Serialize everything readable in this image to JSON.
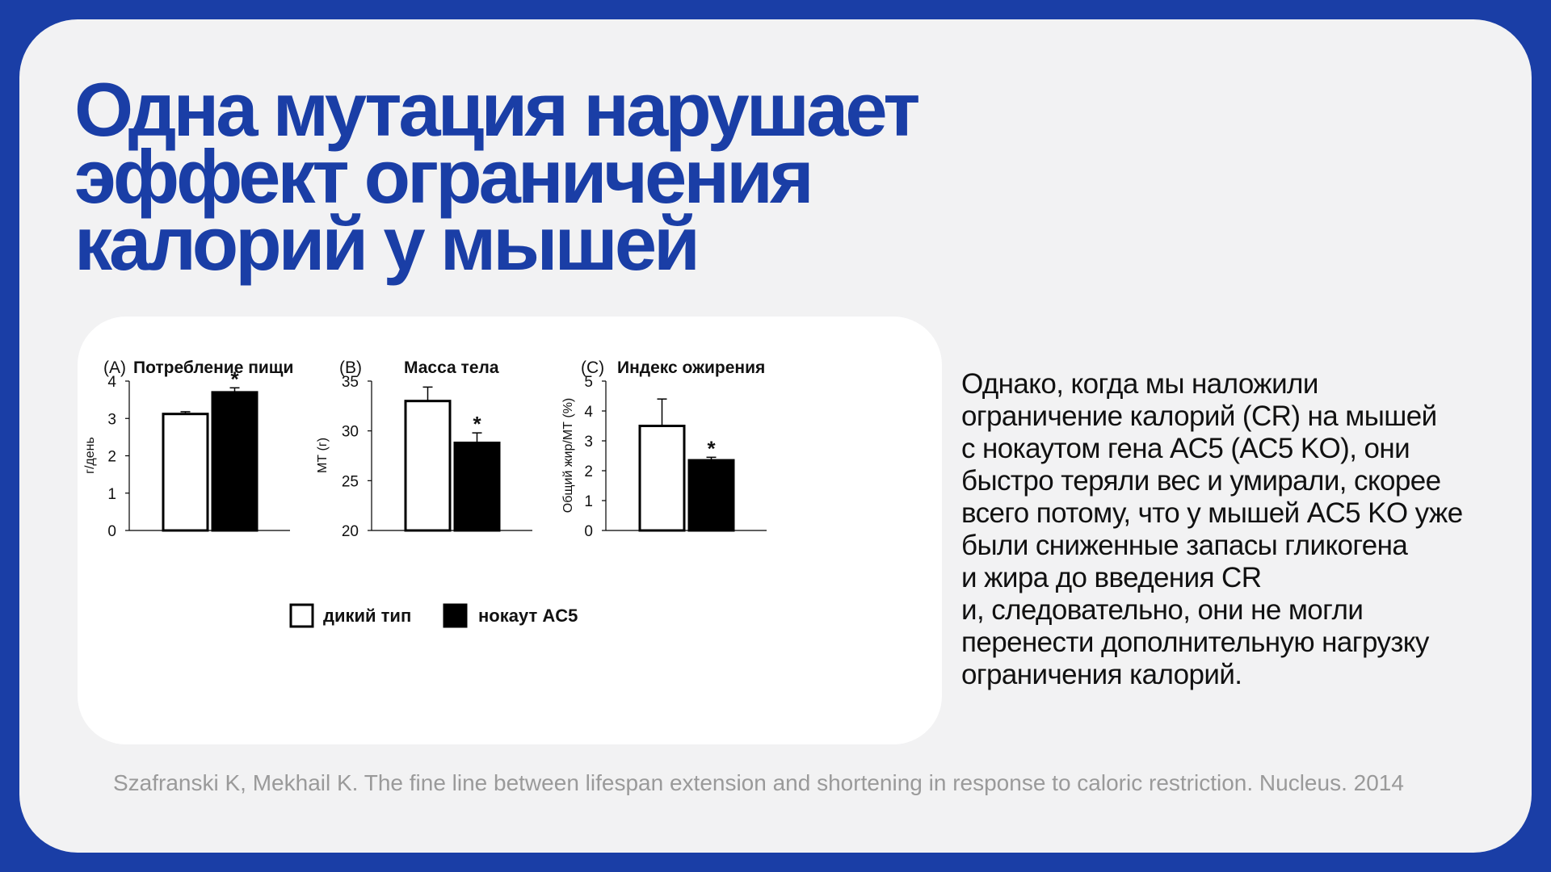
{
  "slide": {
    "title_lines": [
      "Одна мутация нарушает",
      "эффект ограничения",
      "калорий у мышей"
    ],
    "body_lines": [
      "Однако, когда мы наложили",
      "ограничение калорий (CR) на мышей",
      "с нокаутом гена AC5 (AC5 KO), они",
      "быстро теряли вес и умирали, скорее",
      "всего потому, что у мышей AC5 KO уже",
      "были сниженные запасы гликогена",
      "и жира до введения CR",
      "и, следовательно, они не могли",
      "перенести дополнительную нагрузку",
      "ограничения калорий."
    ],
    "citation": "Szafranski K, Mekhail K. The fine line between lifespan extension and shortening in response to caloric restriction. Nucleus. 2014"
  },
  "colors": {
    "accent": "#1a3ea6",
    "background": "#f2f2f3",
    "card": "#ffffff",
    "bar_wildtype": "#ffffff",
    "bar_knockout": "#000000"
  },
  "legend": [
    {
      "label": "дикий тип",
      "swatch": "white"
    },
    {
      "label": "нокаут AC5",
      "swatch": "black"
    }
  ],
  "chart_data": [
    {
      "type": "bar",
      "panel": "(A)",
      "title": "Потребление пищи",
      "ylabel": "г/день",
      "ylim": [
        0,
        4
      ],
      "yticks": [
        "0",
        "1",
        "2",
        "3",
        "4"
      ],
      "categories": [
        "дикий тип",
        "нокаут AC5"
      ],
      "values": [
        3.12,
        3.7
      ],
      "errors": [
        0.06,
        0.12
      ],
      "significance": [
        "",
        "*"
      ]
    },
    {
      "type": "bar",
      "panel": "(B)",
      "title": "Масса тела",
      "ylabel": "МТ (г)",
      "ylim": [
        20,
        35
      ],
      "yticks": [
        "20",
        "25",
        "30",
        "35"
      ],
      "categories": [
        "дикий тип",
        "нокаут AC5"
      ],
      "values": [
        33.0,
        28.8
      ],
      "errors": [
        1.4,
        1.0
      ],
      "significance": [
        "",
        "*"
      ]
    },
    {
      "type": "bar",
      "panel": "(C)",
      "title": "Индекс ожирения",
      "ylabel": "Общий жир/МТ (%)",
      "ylim": [
        0,
        5
      ],
      "yticks": [
        "0",
        "1",
        "2",
        "3",
        "4",
        "5"
      ],
      "categories": [
        "дикий тип",
        "нокаут AC5"
      ],
      "values": [
        3.5,
        2.35
      ],
      "errors": [
        0.9,
        0.1
      ],
      "significance": [
        "",
        "*"
      ]
    }
  ]
}
